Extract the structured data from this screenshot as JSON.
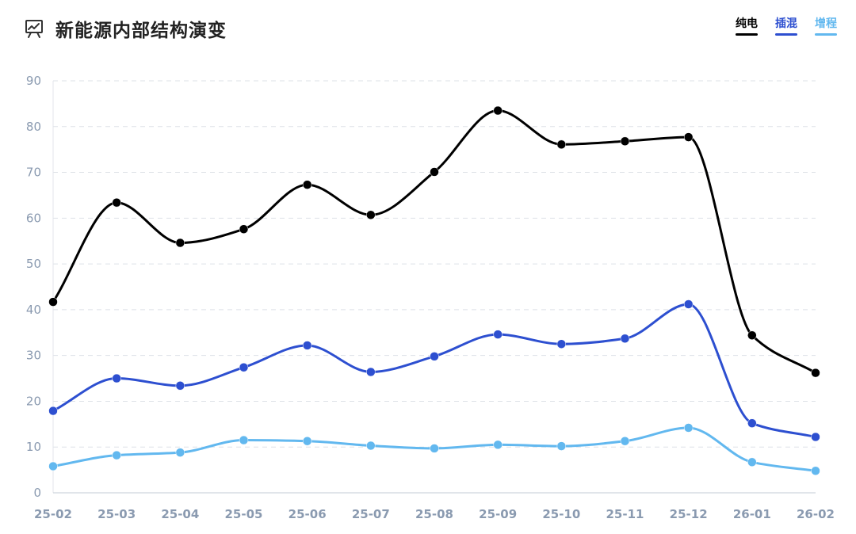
{
  "header": {
    "title": "新能源内部结构演变",
    "icon": "presentation-chart-icon"
  },
  "colors": {
    "pure_ev": "#000000",
    "phev": "#2d4fd0",
    "erev": "#62b8ef",
    "grid": "#dde1e7",
    "axis_text": "#8a9ab0"
  },
  "chart_data": {
    "type": "line",
    "title": "新能源内部结构演变",
    "xlabel": "",
    "ylabel": "",
    "smooth": true,
    "ylim": [
      0,
      90
    ],
    "yticks": [
      0,
      10,
      20,
      30,
      40,
      50,
      60,
      70,
      80,
      90
    ],
    "grid": true,
    "legend_position": "top-right",
    "categories": [
      "25-02",
      "25-03",
      "25-04",
      "25-05",
      "25-06",
      "25-07",
      "25-08",
      "25-09",
      "25-10",
      "25-11",
      "25-12",
      "26-01",
      "26-02"
    ],
    "series": [
      {
        "name": "纯电",
        "color": "#000000",
        "values": [
          41.7,
          63.4,
          54.6,
          57.6,
          67.3,
          60.7,
          70.1,
          83.5,
          76.1,
          76.8,
          77.7,
          34.4,
          26.2
        ]
      },
      {
        "name": "插混",
        "color": "#2d4fd0",
        "values": [
          17.9,
          25.0,
          23.4,
          27.4,
          32.2,
          26.4,
          29.8,
          34.6,
          32.5,
          33.7,
          41.2,
          15.2,
          12.2
        ]
      },
      {
        "name": "增程",
        "color": "#62b8ef",
        "values": [
          5.8,
          8.2,
          8.8,
          11.5,
          11.3,
          10.3,
          9.7,
          10.5,
          10.2,
          11.3,
          14.2,
          6.7,
          4.8
        ]
      }
    ]
  }
}
